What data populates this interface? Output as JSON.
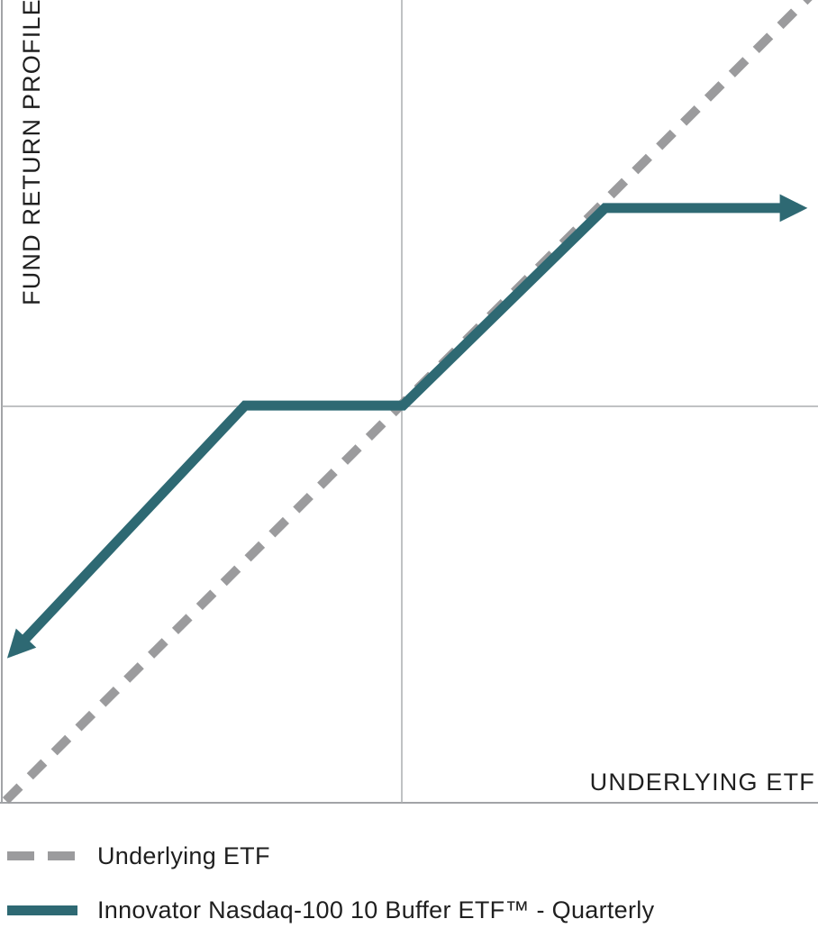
{
  "colors": {
    "underlying_line": "#9b9b9d",
    "fund_line": "#2e6973",
    "axis_line": "#a2a4a7",
    "center_line": "#acaeb1",
    "text": "#1f1f1f"
  },
  "axis_labels": {
    "y": "FUND RETURN PROFILE",
    "x": "UNDERLYING ETF"
  },
  "legend": {
    "items": [
      {
        "label": "Underlying ETF",
        "style": "dashed",
        "color": "#9b9b9d"
      },
      {
        "label": "Innovator Nasdaq-100 10 Buffer ETF™ - Quarterly",
        "style": "solid",
        "color": "#2e6973"
      }
    ]
  },
  "chart_data": {
    "type": "line",
    "title": "",
    "xlabel": "UNDERLYING ETF",
    "ylabel": "FUND RETURN PROFILE",
    "xlim": [
      -1,
      1
    ],
    "ylim": [
      -1,
      1
    ],
    "grid": false,
    "axes": "left and bottom frame lines plus a crosshair through the origin; no tick marks, no tick labels (schematic payoff diagram)",
    "legend_position": "below-left",
    "series": [
      {
        "name": "Underlying ETF",
        "style": "dashed",
        "color": "#9b9b9d",
        "stroke_width": 10,
        "dash_pattern": "22 16",
        "arrow_start": false,
        "arrow_end": false,
        "points": [
          [
            -0.99,
            -0.99
          ],
          [
            1.03,
            1.04
          ]
        ],
        "description": "45-degree 1:1 reference line through the origin"
      },
      {
        "name": "Innovator Nasdaq-100 10 Buffer ETF™ - Quarterly",
        "style": "solid",
        "color": "#2e6973",
        "stroke_width": 11,
        "arrow_start": true,
        "arrow_end": true,
        "points": [
          [
            -0.97,
            -0.615
          ],
          [
            -0.392,
            0.002
          ],
          [
            0.003,
            0.002
          ],
          [
            0.508,
            0.498
          ],
          [
            0.99,
            0.498
          ]
        ],
        "description": "Flat buffered segment just left of origin, 1:1 upside from origin until cap, then flat capped segment; arrowheads on both ends"
      }
    ]
  }
}
